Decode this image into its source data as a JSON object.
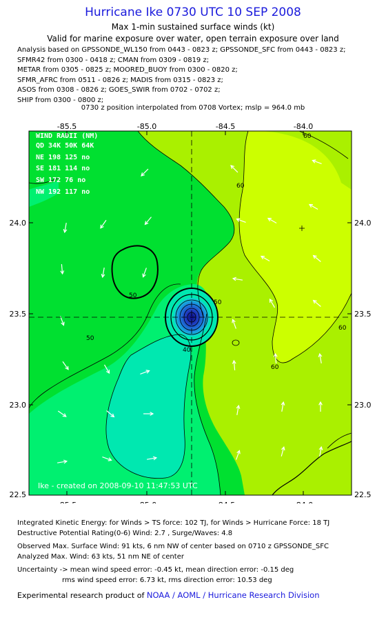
{
  "header": {
    "title": "Hurricane Ike 0730 UTC 10 SEP 2008",
    "subtitle": "Max 1-min sustained surface winds (kt)",
    "valid": "Valid for marine exposure over water, open terrain exposure over land"
  },
  "analysis_lines": [
    "Analysis based on  GPSSONDE_WL150 from 0443 - 0823 z;  GPSSONDE_SFC from 0443 - 0823 z;",
    "SFMR42 from 0300 - 0418 z;  CMAN from 0309 - 0819 z;",
    "METAR from 0305 - 0825 z;  MOORED_BUOY from 0300 - 0820 z;",
    "SFMR_AFRC from 0511 - 0826 z;  MADIS from 0315 - 0823 z;",
    "ASOS from 0308 - 0826 z;  GOES_SWIR from 0702 - 0702 z;",
    "SHIP from 0300 - 0800 z;"
  ],
  "position_note": "0730 z position interpolated from 0708 Vortex; mslp = 964.0 mb",
  "map": {
    "lon_ticks": [
      "-85.5",
      "-85.0",
      "-84.5",
      "-84.0"
    ],
    "lat_ticks": [
      "24.0",
      "23.5",
      "23.0",
      "22.5"
    ],
    "center": {
      "lon": -84.72,
      "lat": 23.49
    },
    "contour_labels": [
      "60",
      "60",
      "60",
      "60",
      "50",
      "50",
      "50",
      "40"
    ],
    "wind_radii": {
      "title": "WIND RADII (NM)",
      "header": "QD  34K  50K  64K",
      "rows": [
        "NE  198  125   no",
        "SE  181  114   no",
        "SW  172   76   no",
        "NW  192  117   no"
      ]
    },
    "credit": "Ike  -  created on  2008-09-10 11:47:53 UTC",
    "colors": {
      "band_30_40": "#00e8b0",
      "band_40_50": "#00f070",
      "band_50_60": "#00e030",
      "band_60_70": "#aaf000",
      "band_70": "#ccff00",
      "eye_core": "#1a2a9a",
      "arrows": "#ffffff",
      "radii_text": "#ffffff"
    }
  },
  "footer": {
    "ike_line": "Integrated Kinetic Energy:  for Winds > TS force: 102 TJ,  for Winds > Hurricane Force: 18 TJ",
    "dp_line": "Destructive Potential Rating(0-6)   Wind: 2.7 , Surge/Waves: 4.8",
    "obs_line": "Observed Max. Surface Wind: 91 kts, 6 nm NW of center based on 0710 z GPSSONDE_SFC",
    "an_line": "Analyzed Max. Wind: 63 kts, 51 nm NE of center",
    "unc_line1": "Uncertainty -> mean wind speed error:  -0.45 kt,    mean direction error:  -0.15 deg",
    "unc_line2": "rms wind speed error: 6.73 kt,   rms direction error: 10.53 deg",
    "product_prefix": "Experimental research product of ",
    "product_link": "NOAA / AOML / Hurricane Research Division"
  }
}
